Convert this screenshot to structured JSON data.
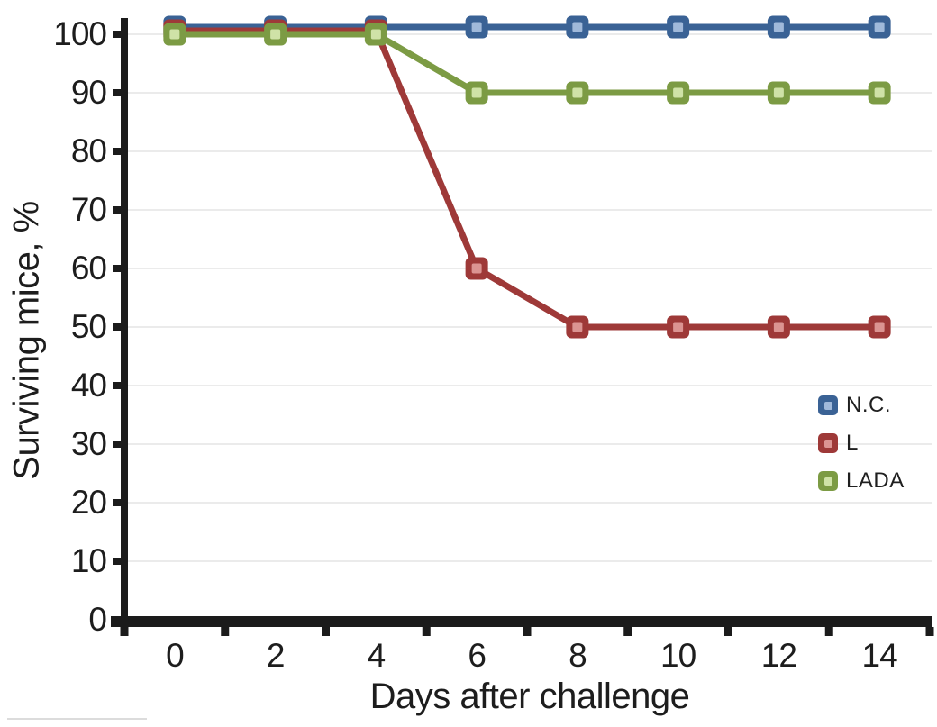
{
  "chart_data": {
    "type": "line",
    "title": "",
    "xlabel": "Days after challenge",
    "ylabel": "Surviving mice, %",
    "x": [
      0,
      2,
      4,
      6,
      8,
      10,
      12,
      14
    ],
    "ylim": [
      0,
      100
    ],
    "ytick_step": 10,
    "yticks": [
      0,
      10,
      20,
      30,
      40,
      50,
      60,
      70,
      80,
      90,
      100
    ],
    "grid": "horizontal",
    "legend_position": "middle-right",
    "series": [
      {
        "name": "N.C.",
        "values": [
          100,
          100,
          100,
          100,
          100,
          100,
          100,
          100
        ],
        "color": "#3A6295",
        "marker_fill": "#A0B9DA"
      },
      {
        "name": "L",
        "values": [
          100,
          100,
          100,
          60,
          50,
          50,
          50,
          50
        ],
        "color": "#9E3938",
        "marker_fill": "#DB9492"
      },
      {
        "name": "LADA",
        "values": [
          100,
          100,
          100,
          90,
          90,
          90,
          90,
          90
        ],
        "color": "#7C9B44",
        "marker_fill": "#CFE2A7"
      }
    ],
    "colors": {
      "axis": "#1B1B1B",
      "gridline": "#EBEBEB",
      "text": "#1D1D1D"
    }
  }
}
